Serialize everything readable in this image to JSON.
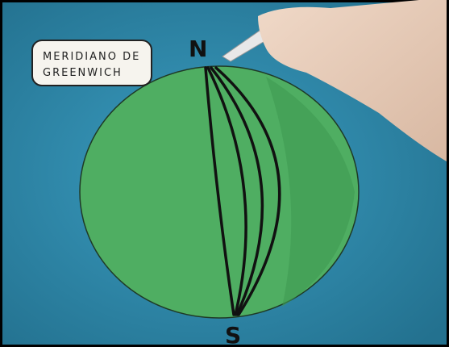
{
  "label": {
    "lines": [
      "MERIDIANO DE",
      "GREENWICH"
    ]
  },
  "poles": {
    "north": "N",
    "south": "S"
  }
}
